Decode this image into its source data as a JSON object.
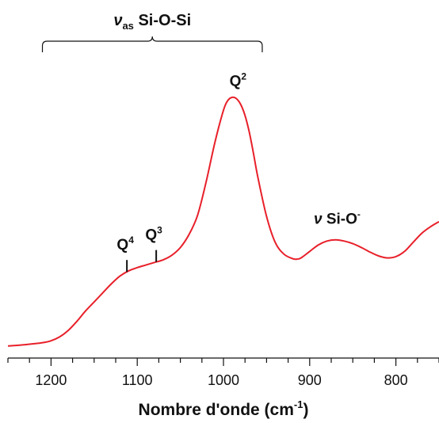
{
  "chart_data": {
    "type": "line",
    "xlabel": "Nombre d'onde (cm",
    "xlabel_sup": "-1",
    "xlabel_close": ")",
    "xlim": [
      1250,
      750
    ],
    "x_reversed": true,
    "xticks": [
      1200,
      1100,
      1000,
      900,
      800
    ],
    "x_minor_step": 25,
    "series": [
      {
        "color": "#e8202a",
        "x": [
          1250,
          1230,
          1210,
          1200,
          1190,
          1180,
          1170,
          1160,
          1150,
          1140,
          1130,
          1120,
          1110,
          1100,
          1090,
          1080,
          1070,
          1060,
          1050,
          1040,
          1030,
          1020,
          1010,
          1000,
          995,
          990,
          985,
          980,
          975,
          970,
          965,
          960,
          950,
          940,
          930,
          920,
          915,
          910,
          900,
          890,
          880,
          870,
          860,
          850,
          840,
          830,
          820,
          810,
          800,
          790,
          780,
          770,
          760,
          750
        ],
        "y": [
          0.02,
          0.03,
          0.045,
          0.06,
          0.09,
          0.14,
          0.21,
          0.29,
          0.36,
          0.43,
          0.5,
          0.56,
          0.6,
          0.625,
          0.645,
          0.665,
          0.685,
          0.72,
          0.78,
          0.88,
          1.03,
          1.29,
          1.59,
          1.84,
          1.915,
          1.94,
          1.93,
          1.885,
          1.8,
          1.67,
          1.5,
          1.32,
          1.02,
          0.82,
          0.73,
          0.695,
          0.69,
          0.7,
          0.75,
          0.8,
          0.83,
          0.84,
          0.83,
          0.81,
          0.78,
          0.745,
          0.715,
          0.7,
          0.71,
          0.75,
          0.82,
          0.89,
          0.94,
          0.98
        ]
      }
    ],
    "ylim": [
      0,
      2.08
    ],
    "annotations": {
      "bracket_label_nu": "ν",
      "bracket_label_sub": "as",
      "bracket_label_rest": " Si-O-Si",
      "bracket_range": [
        1210,
        955
      ],
      "peaks": [
        {
          "id": "q4",
          "base": "Q",
          "sup": "4",
          "x": 1112
        },
        {
          "id": "q3",
          "base": "Q",
          "sup": "3",
          "x": 1078
        },
        {
          "id": "q2",
          "base": "Q",
          "sup": "2",
          "x": 985
        }
      ],
      "band_nu": "ν",
      "band_rest": " Si-O",
      "band_sup": "-",
      "band_x": 870
    }
  }
}
